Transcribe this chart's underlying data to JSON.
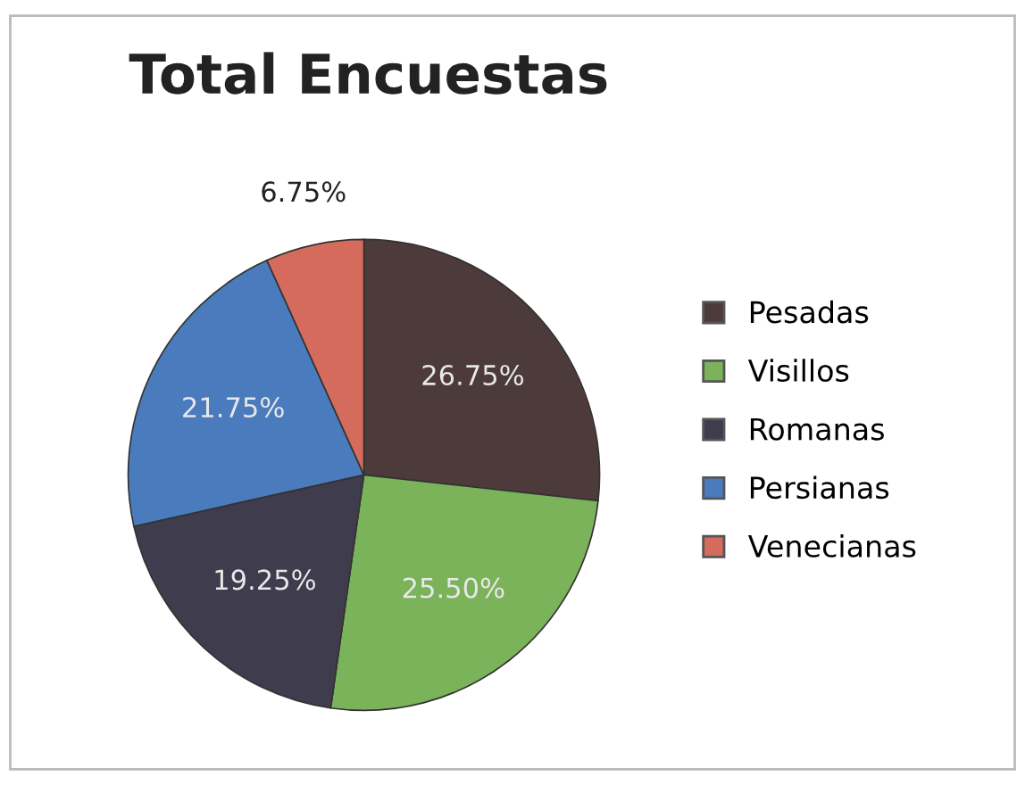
{
  "chart_data": {
    "type": "pie",
    "title": "Total Encuestas",
    "categories": [
      "Pesadas",
      "Visillos",
      "Romanas",
      "Persianas",
      "Venecianas"
    ],
    "values": [
      26.75,
      25.5,
      19.25,
      21.75,
      6.75
    ],
    "colors": [
      "#4d3b3b",
      "#7bb35a",
      "#3f3c4e",
      "#4a7bbd",
      "#d46b5c"
    ],
    "value_labels": [
      "26.75%",
      "25.50%",
      "19.25%",
      "21.75%",
      "6.75%"
    ],
    "legend": "right"
  }
}
